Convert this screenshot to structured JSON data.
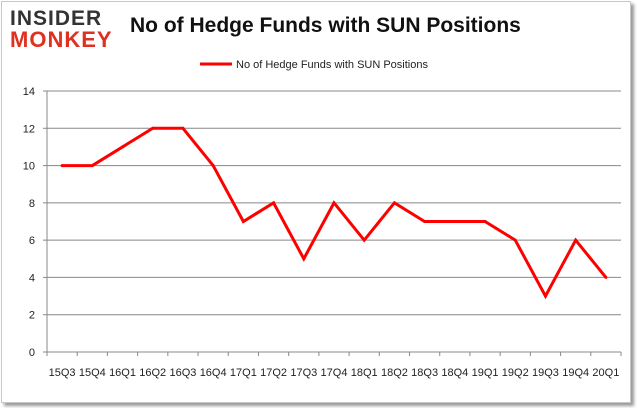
{
  "logo": {
    "top": "INSIDER",
    "bottom": "MONKEY"
  },
  "chart_data": {
    "type": "line",
    "title": "No of Hedge Funds with SUN Positions",
    "xlabel": "",
    "ylabel": "",
    "categories": [
      "15Q3",
      "15Q4",
      "16Q1",
      "16Q2",
      "16Q3",
      "16Q4",
      "17Q1",
      "17Q2",
      "17Q3",
      "17Q4",
      "18Q1",
      "18Q2",
      "18Q3",
      "18Q4",
      "19Q1",
      "19Q2",
      "19Q3",
      "19Q4",
      "20Q1"
    ],
    "series": [
      {
        "name": "No of Hedge Funds with SUN Positions",
        "values": [
          10,
          10,
          11,
          12,
          12,
          10,
          7,
          8,
          5,
          8,
          6,
          8,
          7,
          7,
          7,
          6,
          3,
          6,
          4
        ],
        "color": "#ff0000"
      }
    ],
    "ylim": [
      0,
      14
    ],
    "yticks": [
      "0",
      "2",
      "4",
      "6",
      "8",
      "10",
      "12",
      "14"
    ],
    "grid": true,
    "legend": "top-center"
  }
}
